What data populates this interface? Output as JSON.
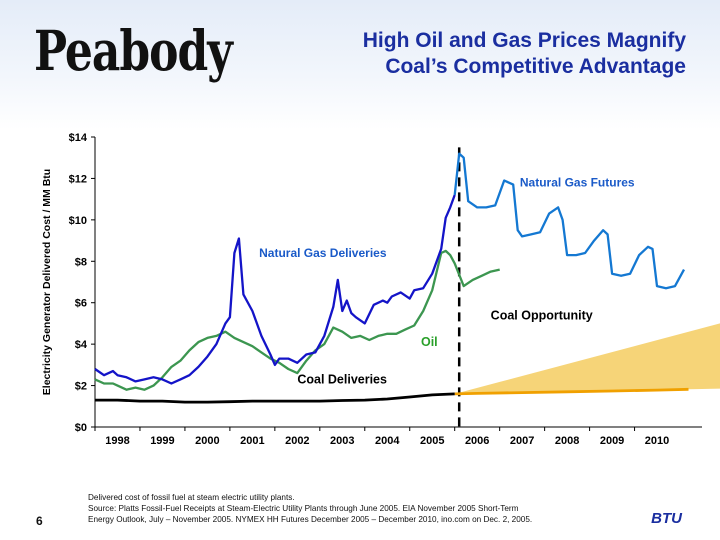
{
  "slide": {
    "logo_text": "Peabody",
    "title_line1": "High Oil and Gas Prices Magnify",
    "title_line2": "Coal’s Competitive Advantage",
    "source_line1": "Delivered cost of fossil fuel at steam electric utility plants.",
    "source_line2": "Source: Platts Fossil-Fuel Receipts at Steam-Electric Utility Plants through June 2005.  EIA November 2005 Short-Term",
    "source_line3": "Energy Outlook, July – November 2005.  NYMEX HH Futures December 2005 – December 2010, ino.com on Dec. 2, 2005.",
    "page_number": "6",
    "ticker": "BTU"
  },
  "colors": {
    "gas": "#1414c8",
    "gas_label": "#1a5ac8",
    "futures": "#1478d2",
    "oil": "#3c9650",
    "oil_label": "#2aa02a",
    "coal": "#000000",
    "coal_future": "#f0a000",
    "wedge": "#f5cc60",
    "title": "#1a2ea0"
  },
  "chart_data": {
    "type": "line",
    "ylabel": "Electricity Generator Delivered Cost / MM Btu",
    "xlabel": "",
    "ylim": [
      0,
      14
    ],
    "yticks": [
      "$0",
      "$2",
      "$4",
      "$6",
      "$8",
      "$10",
      "$12",
      "$14"
    ],
    "xlim": [
      1997.5,
      2011.0
    ],
    "xticks": [
      "1998",
      "1999",
      "2000",
      "2001",
      "2002",
      "2003",
      "2004",
      "2005",
      "2006",
      "2007",
      "2008",
      "2009",
      "2010"
    ],
    "divider_x": 2005.6,
    "series": [
      {
        "name": "Natural Gas Deliveries",
        "x": [
          1997.5,
          1997.7,
          1997.9,
          1998.0,
          1998.2,
          1998.4,
          1998.6,
          1998.8,
          1999.0,
          1999.2,
          1999.4,
          1999.6,
          1999.8,
          2000.0,
          2000.2,
          2000.4,
          2000.5,
          2000.6,
          2000.7,
          2000.8,
          2001.0,
          2001.2,
          2001.4,
          2001.5,
          2001.6,
          2001.8,
          2002.0,
          2002.2,
          2002.4,
          2002.6,
          2002.8,
          2002.9,
          2003.0,
          2003.1,
          2003.2,
          2003.3,
          2003.5,
          2003.7,
          2003.9,
          2004.0,
          2004.1,
          2004.3,
          2004.5,
          2004.6,
          2004.8,
          2005.0,
          2005.2,
          2005.3,
          2005.4,
          2005.5
        ],
        "values": [
          2.8,
          2.5,
          2.7,
          2.5,
          2.4,
          2.2,
          2.3,
          2.4,
          2.3,
          2.1,
          2.3,
          2.5,
          2.9,
          3.4,
          4.0,
          5.0,
          5.3,
          8.4,
          9.1,
          6.4,
          5.6,
          4.4,
          3.5,
          3.0,
          3.3,
          3.3,
          3.1,
          3.5,
          3.6,
          4.4,
          5.8,
          7.1,
          5.6,
          6.1,
          5.5,
          5.3,
          5.0,
          5.9,
          6.1,
          6.0,
          6.3,
          6.5,
          6.2,
          6.6,
          6.7,
          7.4,
          8.6,
          10.1,
          10.6,
          11.2
        ]
      },
      {
        "name": "Oil",
        "x": [
          1997.5,
          1997.7,
          1997.9,
          1998.0,
          1998.2,
          1998.4,
          1998.6,
          1998.8,
          1999.0,
          1999.2,
          1999.4,
          1999.6,
          1999.8,
          2000.0,
          2000.2,
          2000.4,
          2000.6,
          2000.8,
          2001.0,
          2001.2,
          2001.4,
          2001.6,
          2001.8,
          2002.0,
          2002.2,
          2002.4,
          2002.6,
          2002.8,
          2003.0,
          2003.2,
          2003.4,
          2003.6,
          2003.8,
          2004.0,
          2004.2,
          2004.4,
          2004.6,
          2004.8,
          2005.0,
          2005.2,
          2005.3,
          2005.4,
          2005.5,
          2005.7,
          2005.9,
          2006.1,
          2006.3,
          2006.5
        ],
        "values": [
          2.3,
          2.1,
          2.1,
          2.0,
          1.8,
          1.9,
          1.8,
          2.0,
          2.4,
          2.9,
          3.2,
          3.7,
          4.1,
          4.3,
          4.4,
          4.6,
          4.3,
          4.1,
          3.9,
          3.6,
          3.3,
          3.1,
          2.8,
          2.6,
          3.2,
          3.7,
          4.0,
          4.8,
          4.6,
          4.3,
          4.4,
          4.2,
          4.4,
          4.5,
          4.5,
          4.7,
          4.9,
          5.6,
          6.6,
          8.4,
          8.5,
          8.3,
          7.9,
          6.8,
          7.1,
          7.3,
          7.5,
          7.6
        ]
      },
      {
        "name": "Natural Gas Futures",
        "x": [
          2005.5,
          2005.6,
          2005.7,
          2005.8,
          2006.0,
          2006.2,
          2006.4,
          2006.6,
          2006.8,
          2006.9,
          2007.0,
          2007.2,
          2007.4,
          2007.6,
          2007.8,
          2007.9,
          2008.0,
          2008.2,
          2008.4,
          2008.6,
          2008.8,
          2008.9,
          2009.0,
          2009.2,
          2009.4,
          2009.6,
          2009.8,
          2009.9,
          2010.0,
          2010.2,
          2010.4,
          2010.6
        ],
        "values": [
          11.2,
          13.2,
          13.0,
          10.9,
          10.6,
          10.6,
          10.7,
          11.9,
          11.7,
          9.5,
          9.2,
          9.3,
          9.4,
          10.3,
          10.6,
          10.0,
          8.3,
          8.3,
          8.4,
          9.0,
          9.5,
          9.3,
          7.4,
          7.3,
          7.4,
          8.3,
          8.7,
          8.6,
          6.8,
          6.7,
          6.8,
          7.6
        ]
      },
      {
        "name": "Coal Deliveries",
        "x": [
          1997.5,
          1998.0,
          1998.5,
          1999.0,
          1999.5,
          2000.0,
          2000.5,
          2001.0,
          2001.5,
          2002.0,
          2002.5,
          2003.0,
          2003.5,
          2004.0,
          2004.5,
          2005.0,
          2005.5
        ],
        "values": [
          1.3,
          1.3,
          1.25,
          1.25,
          1.2,
          1.2,
          1.22,
          1.25,
          1.25,
          1.25,
          1.25,
          1.28,
          1.3,
          1.35,
          1.45,
          1.55,
          1.6
        ]
      },
      {
        "name": "Coal Future",
        "x": [
          2005.5,
          2006.0,
          2007.0,
          2008.0,
          2009.0,
          2010.0,
          2010.7
        ],
        "values": [
          1.6,
          1.62,
          1.66,
          1.7,
          1.74,
          1.78,
          1.82
        ]
      }
    ],
    "annotations": [
      {
        "text": "Natural Gas Futures",
        "x": 2006.95,
        "y": 11.6
      },
      {
        "text": "Natural Gas Deliveries",
        "x": 2001.15,
        "y": 8.2
      },
      {
        "text": "Coal Opportunity",
        "x": 2006.3,
        "y": 5.2
      },
      {
        "text": "Oil",
        "x": 2004.75,
        "y": 3.9
      },
      {
        "text": "Coal Deliveries",
        "x": 2002.0,
        "y": 2.1
      }
    ]
  }
}
